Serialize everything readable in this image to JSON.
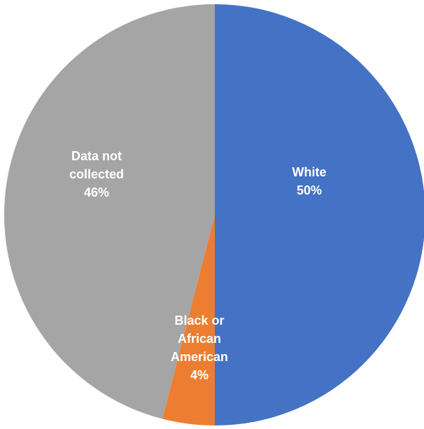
{
  "chart_data": {
    "type": "pie",
    "slices": [
      {
        "label_lines": [
          "White",
          "50%"
        ],
        "value": 50,
        "color": "#4472C4"
      },
      {
        "label_lines": [
          "Black or",
          "African",
          "American",
          "4%"
        ],
        "value": 4,
        "color": "#ED7D31"
      },
      {
        "label_lines": [
          "Data not",
          "collected",
          "46%"
        ],
        "value": 46,
        "color": "#A5A5A5"
      }
    ],
    "start": "12 o'clock",
    "direction": "clockwise"
  }
}
